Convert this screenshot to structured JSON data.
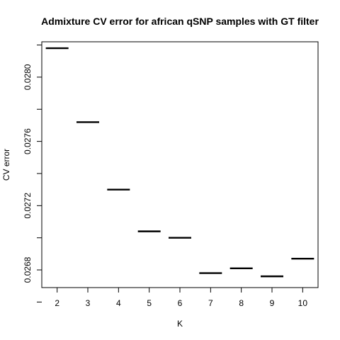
{
  "chart_data": {
    "type": "scatter",
    "marker": "horizontal-dash",
    "title": "Admixture CV error for african qSNP samples with GT filter",
    "xlabel": "K",
    "ylabel": "CV error",
    "x": [
      2,
      3,
      4,
      5,
      6,
      7,
      8,
      9,
      10
    ],
    "y": [
      0.02818,
      0.02772,
      0.0273,
      0.02704,
      0.027,
      0.02678,
      0.02681,
      0.02676,
      0.02687
    ],
    "xlim": [
      1.5,
      10.5
    ],
    "ylim": [
      0.02669,
      0.02822
    ],
    "xticks": [
      2,
      3,
      4,
      5,
      6,
      7,
      8,
      9,
      10
    ],
    "yticks": [
      0.0266,
      0.0268,
      0.027,
      0.0272,
      0.0274,
      0.0276,
      0.0278,
      0.028,
      0.0282
    ],
    "ytick_labels": [
      "",
      "0.0268",
      "",
      "0.0272",
      "",
      "0.0276",
      "",
      "0.0280",
      ""
    ],
    "grid": false,
    "legend": "none",
    "colors": {
      "marks": "#000000",
      "frame": "#000000",
      "background": "#ffffff"
    }
  }
}
